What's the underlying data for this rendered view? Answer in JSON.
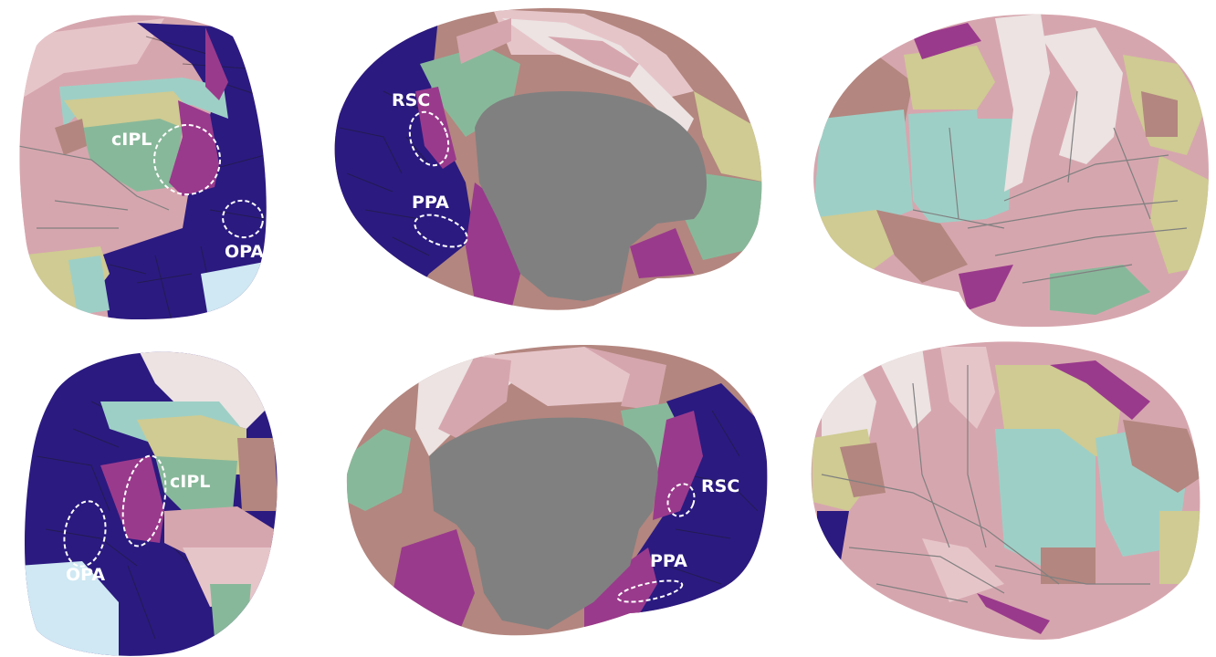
{
  "panels": {
    "top_left_posterior": {
      "labels": [
        "cIPL",
        "OPA"
      ]
    },
    "top_middle_medial": {
      "labels": [
        "RSC",
        "PPA"
      ]
    },
    "top_right_lateral": {
      "labels": []
    },
    "bottom_left_posterior": {
      "labels": [
        "cIPL",
        "OPA"
      ]
    },
    "bottom_middle_medial": {
      "labels": [
        "RSC",
        "PPA"
      ]
    },
    "bottom_right_lateral": {
      "labels": []
    }
  },
  "colors": {
    "visual_navy": "#2b1a80",
    "light_blue": "#cfe8f3",
    "magenta": "#9a3a8c",
    "mint_green": "#88b89a",
    "teal": "#9ecfc6",
    "olive": "#cfcb92",
    "pink": "#d6a6ae",
    "rose_brown": "#b3867f",
    "light_pink": "#e6c5c9",
    "off_white": "#ece3e2",
    "medial_wall_gray": "#808080"
  }
}
